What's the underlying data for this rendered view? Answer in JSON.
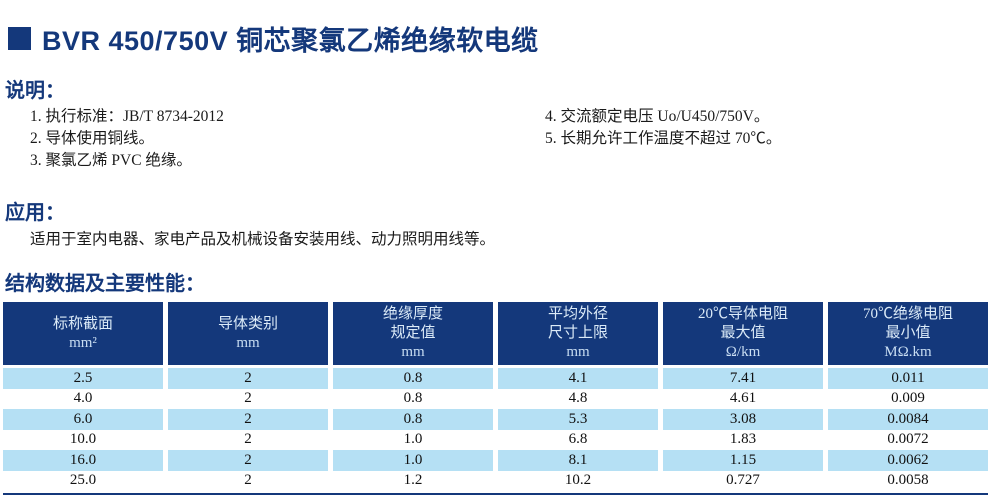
{
  "page": {
    "title": "BVR 450/750V 铜芯聚氯乙烯绝缘软电缆"
  },
  "colors": {
    "navy": "#14387b",
    "stripe_blue": "#b5e0f4",
    "header_text": "#dcebf8"
  },
  "description": {
    "heading": "说明：",
    "items_left": [
      "1. 执行标准：JB/T  8734-2012",
      "2. 导体使用铜线。",
      "3. 聚氯乙烯 PVC 绝缘。"
    ],
    "items_right": [
      "4. 交流额定电压 Uo/U450/750V。",
      "5. 长期允许工作温度不超过 70℃。"
    ]
  },
  "application": {
    "heading": "应用：",
    "text": "适用于室内电器、家电产品及机械设备安装用线、动力照明用线等。"
  },
  "table_section": {
    "heading": "结构数据及主要性能：",
    "columns": [
      {
        "line1": "标称截面",
        "line2": "",
        "unit": "mm²"
      },
      {
        "line1": "导体类别",
        "line2": "",
        "unit": "mm"
      },
      {
        "line1": "绝缘厚度",
        "line2": "规定值",
        "unit": "mm"
      },
      {
        "line1": "平均外径",
        "line2": "尺寸上限",
        "unit": "mm"
      },
      {
        "line1": "20℃导体电阻",
        "line2": "最大值",
        "unit": "Ω/km"
      },
      {
        "line1": "70℃绝缘电阻",
        "line2": "最小值",
        "unit": "MΩ.km"
      }
    ],
    "rows": [
      [
        "2.5",
        "2",
        "0.8",
        "4.1",
        "7.41",
        "0.011"
      ],
      [
        "4.0",
        "2",
        "0.8",
        "4.8",
        "4.61",
        "0.009"
      ],
      [
        "6.0",
        "2",
        "0.8",
        "5.3",
        "3.08",
        "0.0084"
      ],
      [
        "10.0",
        "2",
        "1.0",
        "6.8",
        "1.83",
        "0.0072"
      ],
      [
        "16.0",
        "2",
        "1.0",
        "8.1",
        "1.15",
        "0.0062"
      ],
      [
        "25.0",
        "2",
        "1.2",
        "10.2",
        "0.727",
        "0.0058"
      ]
    ]
  }
}
